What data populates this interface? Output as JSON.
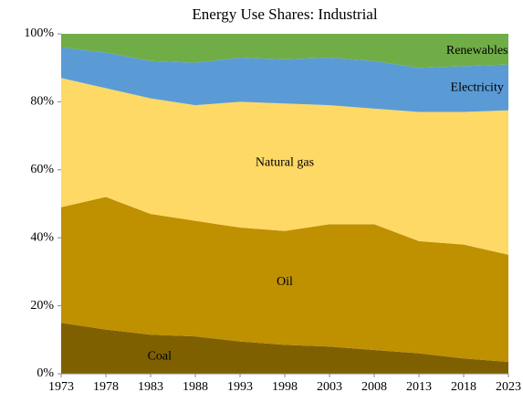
{
  "chart_data": {
    "type": "stacked-area",
    "title": "Energy Use Shares: Industrial",
    "x": [
      1973,
      1978,
      1983,
      1988,
      1993,
      1998,
      2003,
      2008,
      2013,
      2018,
      2023
    ],
    "series": [
      {
        "name": "Coal",
        "color": "#7f6000",
        "values": [
          15,
          13,
          11.5,
          11,
          9.5,
          8.5,
          8,
          7,
          6,
          4.5,
          3.5
        ]
      },
      {
        "name": "Oil",
        "color": "#bf9000",
        "values": [
          34,
          39,
          35.5,
          34,
          33.5,
          33.5,
          36,
          37,
          33,
          33.5,
          31.5
        ]
      },
      {
        "name": "Natural gas",
        "color": "#ffd966",
        "values": [
          38,
          32,
          34,
          34,
          37,
          37.5,
          35,
          34,
          38,
          39,
          42.5
        ]
      },
      {
        "name": "Electricity",
        "color": "#5b9bd5",
        "values": [
          9,
          10.5,
          11,
          12.5,
          13,
          13,
          14,
          14,
          13,
          13.5,
          13.5
        ]
      },
      {
        "name": "Renewables",
        "color": "#70ad47",
        "values": [
          4,
          5.5,
          8,
          8.5,
          7,
          7.5,
          7,
          8,
          10,
          9.5,
          9
        ]
      }
    ],
    "xlim": [
      1973,
      2023
    ],
    "xticks": [
      1973,
      1978,
      1983,
      1988,
      1993,
      1998,
      2003,
      2008,
      2013,
      2018,
      2023
    ],
    "ylim": [
      0,
      100
    ],
    "yticks": [
      {
        "value": 0,
        "label": "0%"
      },
      {
        "value": 20,
        "label": "20%"
      },
      {
        "value": 40,
        "label": "40%"
      },
      {
        "value": 60,
        "label": "60%"
      },
      {
        "value": 80,
        "label": "80%"
      },
      {
        "value": 100,
        "label": "100%"
      }
    ]
  }
}
